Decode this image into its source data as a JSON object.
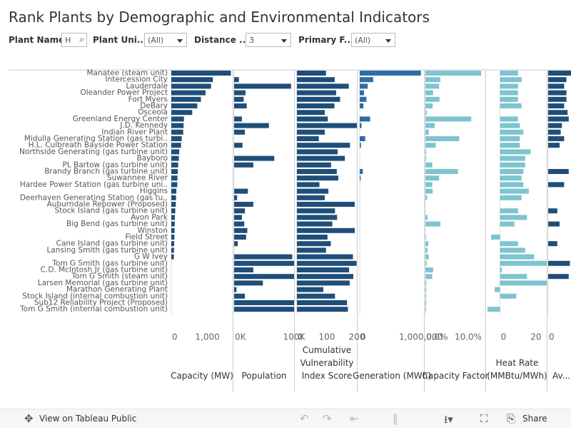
{
  "title": "Rank Plants by Demographic and Environmental Indicators",
  "filters": [
    {
      "label": "Plant Name",
      "value": "H"
    },
    {
      "label": "Plant Uni...",
      "value": "(All)"
    },
    {
      "label": "Distance ...",
      "value": "3"
    },
    {
      "label": "Primary F...",
      "value": "(All)"
    }
  ],
  "footer": {
    "view_label": "View on Tableau Public",
    "share_label": "Share"
  },
  "colors": {
    "dark": "#1f4e79",
    "mid": "#2e6da4",
    "light": "#7dc4cf",
    "grid": "#cccccc"
  },
  "chart_data": {
    "type": "bar",
    "orientation": "horizontal",
    "categories": [
      "Manatee (steam unit)",
      "Intercession City",
      "Lauderdale",
      "Oleander Power Project",
      "Fort Myers",
      "DeBary",
      "Osceola",
      "Greenland Energy Center",
      "J.D. Kennedy",
      "Indian River Plant",
      "Midulla Generating Station (gas turbi..",
      "H.L. Culbreath Bayside Power Station",
      "Northside Generating (gas turbine unit)",
      "Bayboro",
      "PL Bartow (gas turbine unit)",
      "Brandy Branch (gas turbine unit)",
      "Suwannee River",
      "Hardee Power Station (gas turbine uni..",
      "Higgins",
      "Deerhaven Generating Station (gas tu..",
      "Auburndale Repower (Proposed)",
      "Stock Island (gas turbine unit)",
      "Avon Park",
      "Big Bend (gas turbine unit)",
      "Winston",
      "Field Street",
      "Cane Island (gas turbine unit)",
      "Lansing Smith (gas turbine unit)",
      "G W Ivey",
      "Tom G Smith (gas turbine unit)",
      "C.D. McIntosh Jr (gas turbine unit)",
      "Tom G Smith (steam unit)",
      "Larsen Memorial (gas turbine unit)",
      "Marathon Generating Plant",
      "Stock Island (internal combustion unit)",
      "Sub12 Reliability Project (Proposed)",
      "Tom G Smith (internal combustion unit)"
    ],
    "panels": [
      {
        "title": "Capacity (MW)",
        "ticks": [
          "0",
          "1,000"
        ],
        "tick_values": [
          0,
          1000
        ],
        "range": [
          0,
          1700
        ],
        "values": [
          1650,
          1150,
          1100,
          950,
          820,
          720,
          580,
          350,
          340,
          330,
          290,
          270,
          220,
          210,
          190,
          180,
          170,
          165,
          140,
          130,
          125,
          110,
          100,
          95,
          90,
          85,
          80,
          75,
          70,
          0,
          0,
          0,
          0,
          0,
          0,
          0,
          0
        ]
      },
      {
        "title": "Population",
        "ticks": [
          "0K",
          "100K"
        ],
        "tick_values": [
          0,
          100000
        ],
        "range": [
          0,
          100000
        ],
        "values": [
          0,
          8000,
          95000,
          19000,
          16000,
          21000,
          0,
          13000,
          58000,
          18000,
          0,
          14000,
          0,
          67000,
          32000,
          0,
          0,
          0,
          23000,
          5000,
          32000,
          18000,
          13000,
          17000,
          22000,
          20000,
          6000,
          0,
          97000,
          100000,
          32000,
          100000,
          48000,
          4000,
          18000,
          100000,
          100000
        ]
      },
      {
        "title": "Cumulative Vulnerability Index Score",
        "ticks": [
          "0",
          "100",
          "200"
        ],
        "tick_values": [
          0,
          100,
          200
        ],
        "range": [
          0,
          200
        ],
        "values": [
          97,
          126,
          173,
          131,
          144,
          125,
          93,
          103,
          200,
          93,
          73,
          177,
          136,
          160,
          114,
          133,
          138,
          75,
          105,
          93,
          193,
          127,
          134,
          118,
          193,
          102,
          113,
          97,
          187,
          199,
          174,
          188,
          176,
          88,
          127,
          167,
          170
        ]
      },
      {
        "title": "Generation (MWh)",
        "ticks": [
          "0",
          "1,000,000"
        ],
        "tick_values": [
          0,
          1000000
        ],
        "range": [
          0,
          1050000
        ],
        "values": [
          1000000,
          220000,
          130000,
          70000,
          110000,
          60000,
          0,
          170000,
          30000,
          0,
          90000,
          20000,
          0,
          0,
          0,
          50000,
          15000,
          0,
          0,
          0,
          0,
          0,
          0,
          0,
          0,
          0,
          0,
          0,
          0,
          0,
          0,
          0,
          0,
          0,
          0,
          0,
          0
        ]
      },
      {
        "title": "Capacity Factor",
        "ticks": [
          "0.0%",
          "10.0%"
        ],
        "tick_values": [
          0,
          10
        ],
        "range": [
          0,
          14
        ],
        "values": [
          13.0,
          3.5,
          3.2,
          1.8,
          3.3,
          1.7,
          0.3,
          10.7,
          2.2,
          0.8,
          7.9,
          2.4,
          0.2,
          0.2,
          1.6,
          7.6,
          3.2,
          1.6,
          1.7,
          0.4,
          0,
          0,
          0.5,
          3.5,
          0,
          0.1,
          0.7,
          0.5,
          0.8,
          0.3,
          1.8,
          1.6,
          0.2,
          0.2,
          0.1,
          0.2,
          0.1
        ]
      },
      {
        "title": "Heat Rate (MMBtu/MWh)",
        "ticks": [
          "0",
          "20"
        ],
        "tick_values": [
          0,
          20
        ],
        "range": [
          -7,
          26
        ],
        "values": [
          10,
          12,
          10,
          10,
          10,
          12,
          0,
          10,
          11,
          13,
          11,
          11,
          17,
          14,
          14,
          13,
          12,
          13,
          16,
          12,
          0,
          10,
          15,
          8,
          0,
          -5,
          10,
          14,
          19,
          29,
          1,
          15,
          32,
          -3,
          9,
          0,
          -10
        ]
      },
      {
        "title": "Av... Tim...",
        "ticks": [
          "0"
        ],
        "tick_values": [
          0
        ],
        "range": [
          0,
          1
        ],
        "values": [
          1.0,
          0.8,
          0.7,
          0.8,
          0.8,
          0.7,
          0.85,
          0.9,
          0.6,
          0.55,
          0.7,
          0.5,
          0,
          0,
          0,
          0.9,
          0,
          0.7,
          0,
          0,
          0,
          0.4,
          0,
          0.5,
          0,
          0,
          0.4,
          0,
          0,
          0.95,
          0,
          0.9,
          0,
          0,
          0,
          0,
          0
        ]
      }
    ]
  }
}
